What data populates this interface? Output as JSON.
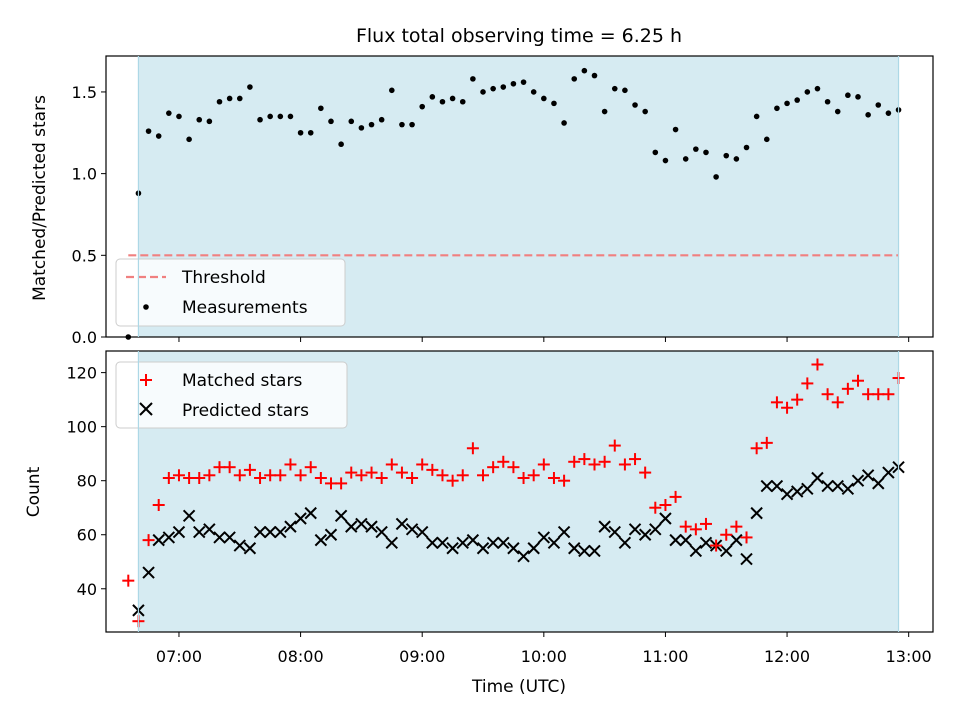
{
  "chart_data": [
    {
      "type": "scatter",
      "title": "Flux total observing time = 6.25 h",
      "xlabel": "",
      "ylabel": "Matched/Predicted stars",
      "ylim": [
        0,
        1.72
      ],
      "yticks": [
        "0.0",
        "0.5",
        "1.0",
        "1.5"
      ],
      "xlim": [
        "06:24",
        "13:12"
      ],
      "shaded_span": [
        "06:40",
        "12:55"
      ],
      "shade_color": "#add8e6",
      "legend_position": "lower left",
      "threshold": {
        "name": "Threshold",
        "y": 0.5,
        "x": [
          "06:35",
          "12:55"
        ],
        "color": "#f08080"
      },
      "series": [
        {
          "name": "Measurements",
          "marker": "dot",
          "color": "#000000",
          "x": [
            "06:35",
            "06:40",
            "06:45",
            "06:50",
            "06:55",
            "07:00",
            "07:05",
            "07:10",
            "07:15",
            "07:20",
            "07:25",
            "07:30",
            "07:35",
            "07:40",
            "07:45",
            "07:50",
            "07:55",
            "08:00",
            "08:05",
            "08:10",
            "08:15",
            "08:20",
            "08:25",
            "08:30",
            "08:35",
            "08:40",
            "08:45",
            "08:50",
            "08:55",
            "09:00",
            "09:05",
            "09:10",
            "09:15",
            "09:20",
            "09:25",
            "09:30",
            "09:35",
            "09:40",
            "09:45",
            "09:50",
            "09:55",
            "10:00",
            "10:05",
            "10:10",
            "10:15",
            "10:20",
            "10:25",
            "10:30",
            "10:35",
            "10:40",
            "10:45",
            "10:50",
            "10:55",
            "11:00",
            "11:05",
            "11:10",
            "11:15",
            "11:20",
            "11:25",
            "11:30",
            "11:35",
            "11:40",
            "11:45",
            "11:50",
            "11:55",
            "12:00",
            "12:05",
            "12:10",
            "12:15",
            "12:20",
            "12:25",
            "12:30",
            "12:35",
            "12:40",
            "12:45",
            "12:50",
            "12:55"
          ],
          "y": [
            0.0,
            0.88,
            1.26,
            1.23,
            1.37,
            1.35,
            1.21,
            1.33,
            1.32,
            1.44,
            1.46,
            1.46,
            1.53,
            1.33,
            1.35,
            1.35,
            1.35,
            1.25,
            1.25,
            1.4,
            1.32,
            1.18,
            1.32,
            1.28,
            1.3,
            1.33,
            1.51,
            1.3,
            1.3,
            1.41,
            1.47,
            1.44,
            1.46,
            1.44,
            1.58,
            1.5,
            1.52,
            1.53,
            1.55,
            1.56,
            1.5,
            1.46,
            1.43,
            1.31,
            1.58,
            1.63,
            1.6,
            1.38,
            1.52,
            1.51,
            1.42,
            1.38,
            1.13,
            1.08,
            1.27,
            1.09,
            1.15,
            1.13,
            0.98,
            1.11,
            1.09,
            1.16,
            1.35,
            1.21,
            1.4,
            1.43,
            1.45,
            1.5,
            1.52,
            1.44,
            1.38,
            1.48,
            1.47,
            1.36,
            1.42,
            1.37,
            1.39
          ]
        }
      ]
    },
    {
      "type": "scatter",
      "title": "",
      "xlabel": "Time (UTC)",
      "ylabel": "Count",
      "ylim": [
        24,
        128
      ],
      "yticks": [
        "40",
        "60",
        "80",
        "100",
        "120"
      ],
      "xlim": [
        "06:24",
        "13:12"
      ],
      "xticks": [
        "07:00",
        "08:00",
        "09:00",
        "10:00",
        "11:00",
        "12:00",
        "13:00"
      ],
      "shaded_span": [
        "06:40",
        "12:55"
      ],
      "shade_color": "#add8e6",
      "legend_position": "upper left",
      "series": [
        {
          "name": "Matched stars",
          "marker": "+",
          "color": "#ff0000",
          "x": [
            "06:35",
            "06:40",
            "06:45",
            "06:50",
            "06:55",
            "07:00",
            "07:05",
            "07:10",
            "07:15",
            "07:20",
            "07:25",
            "07:30",
            "07:35",
            "07:40",
            "07:45",
            "07:50",
            "07:55",
            "08:00",
            "08:05",
            "08:10",
            "08:15",
            "08:20",
            "08:25",
            "08:30",
            "08:35",
            "08:40",
            "08:45",
            "08:50",
            "08:55",
            "09:00",
            "09:05",
            "09:10",
            "09:15",
            "09:20",
            "09:25",
            "09:30",
            "09:35",
            "09:40",
            "09:45",
            "09:50",
            "09:55",
            "10:00",
            "10:05",
            "10:10",
            "10:15",
            "10:20",
            "10:25",
            "10:30",
            "10:35",
            "10:40",
            "10:45",
            "10:50",
            "10:55",
            "11:00",
            "11:05",
            "11:10",
            "11:15",
            "11:20",
            "11:25",
            "11:30",
            "11:35",
            "11:40",
            "11:45",
            "11:50",
            "11:55",
            "12:00",
            "12:05",
            "12:10",
            "12:15",
            "12:20",
            "12:25",
            "12:30",
            "12:35",
            "12:40",
            "12:45",
            "12:50",
            "12:55"
          ],
          "y": [
            43,
            28,
            58,
            71,
            81,
            82,
            81,
            81,
            82,
            85,
            85,
            82,
            84,
            81,
            82,
            82,
            86,
            82,
            85,
            81,
            79,
            79,
            83,
            82,
            83,
            81,
            86,
            83,
            81,
            86,
            84,
            82,
            80,
            82,
            92,
            82,
            85,
            87,
            85,
            81,
            82,
            86,
            81,
            80,
            87,
            88,
            86,
            87,
            93,
            86,
            88,
            83,
            70,
            71,
            74,
            63,
            62,
            64,
            56,
            60,
            63,
            59,
            92,
            94,
            109,
            107,
            110,
            116,
            123,
            112,
            109,
            114,
            117,
            112,
            112,
            112,
            118
          ]
        },
        {
          "name": "Predicted stars",
          "marker": "x",
          "color": "#000000",
          "x": [
            "06:40",
            "06:45",
            "06:50",
            "06:55",
            "07:00",
            "07:05",
            "07:10",
            "07:15",
            "07:20",
            "07:25",
            "07:30",
            "07:35",
            "07:40",
            "07:45",
            "07:50",
            "07:55",
            "08:00",
            "08:05",
            "08:10",
            "08:15",
            "08:20",
            "08:25",
            "08:30",
            "08:35",
            "08:40",
            "08:45",
            "08:50",
            "08:55",
            "09:00",
            "09:05",
            "09:10",
            "09:15",
            "09:20",
            "09:25",
            "09:30",
            "09:35",
            "09:40",
            "09:45",
            "09:50",
            "09:55",
            "10:00",
            "10:05",
            "10:10",
            "10:15",
            "10:20",
            "10:25",
            "10:30",
            "10:35",
            "10:40",
            "10:45",
            "10:50",
            "10:55",
            "11:00",
            "11:05",
            "11:10",
            "11:15",
            "11:20",
            "11:25",
            "11:30",
            "11:35",
            "11:40",
            "11:45",
            "11:50",
            "11:55",
            "12:00",
            "12:05",
            "12:10",
            "12:15",
            "12:20",
            "12:25",
            "12:30",
            "12:35",
            "12:40",
            "12:45",
            "12:50",
            "12:55"
          ],
          "y": [
            32,
            46,
            58,
            59,
            61,
            67,
            61,
            62,
            59,
            59,
            56,
            55,
            61,
            61,
            61,
            63,
            66,
            68,
            58,
            60,
            67,
            63,
            64,
            63,
            61,
            57,
            64,
            62,
            61,
            57,
            57,
            55,
            57,
            58,
            55,
            57,
            57,
            55,
            52,
            55,
            59,
            57,
            61,
            55,
            54,
            54,
            63,
            61,
            57,
            62,
            60,
            62,
            66,
            58,
            58,
            54,
            57,
            56,
            54,
            58,
            51,
            68,
            78,
            78,
            75,
            76,
            77,
            81,
            78,
            78,
            77,
            80,
            82,
            79,
            83,
            85
          ]
        }
      ]
    }
  ]
}
